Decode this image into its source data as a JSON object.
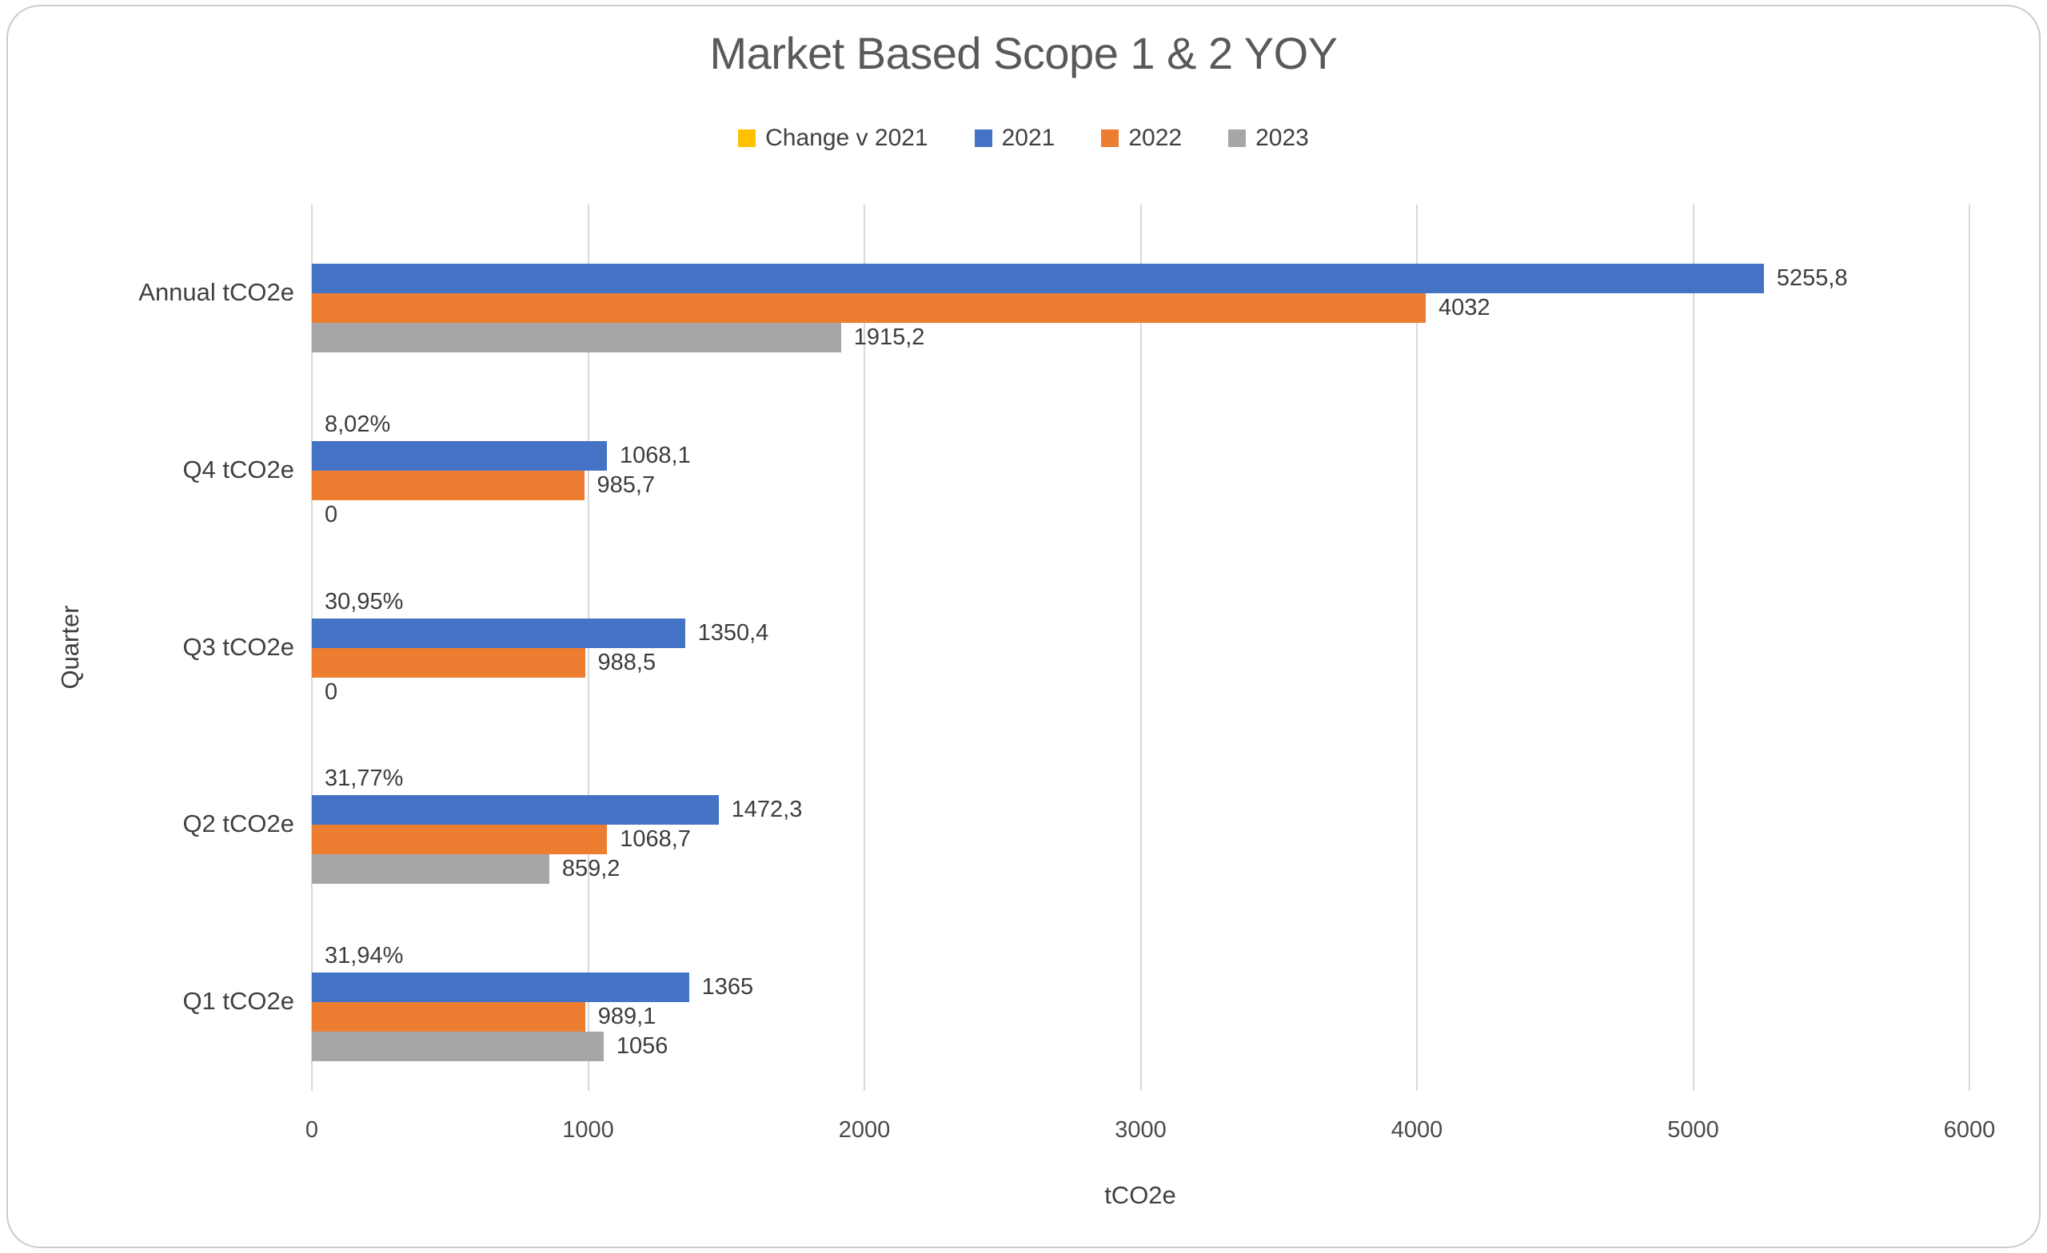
{
  "chart_data": {
    "type": "bar",
    "orientation": "horizontal",
    "title": "Market Based Scope 1 & 2 YOY",
    "xlabel": "tCO2e",
    "ylabel": "Quarter",
    "xlim": [
      0,
      6000
    ],
    "xticks": [
      0,
      1000,
      2000,
      3000,
      4000,
      5000,
      6000
    ],
    "xtick_labels": [
      "0",
      "1000",
      "2000",
      "3000",
      "4000",
      "5000",
      "6000"
    ],
    "grid": "vertical-gridlines-on",
    "legend_position": "top",
    "categories": [
      "Annual tCO2e",
      "Q4 tCO2e",
      "Q3 tCO2e",
      "Q2 tCO2e",
      "Q1 tCO2e"
    ],
    "series": [
      {
        "name": "Change v 2021",
        "color": "#FFC000",
        "role": "percent-change-labels",
        "values": [
          null,
          0.0802,
          0.3095,
          0.3177,
          0.3194
        ],
        "labels": [
          "",
          "8,02%",
          "30,95%",
          "31,77%",
          "31,94%"
        ]
      },
      {
        "name": "2021",
        "color": "#4472C4",
        "values": [
          5255.8,
          1068.1,
          1350.4,
          1472.3,
          1365
        ],
        "labels": [
          "5255,8",
          "1068,1",
          "1350,4",
          "1472,3",
          "1365"
        ]
      },
      {
        "name": "2022",
        "color": "#ED7D31",
        "values": [
          4032,
          985.7,
          988.5,
          1068.7,
          989.1
        ],
        "labels": [
          "4032",
          "985,7",
          "988,5",
          "1068,7",
          "989,1"
        ]
      },
      {
        "name": "2023",
        "color": "#A6A6A6",
        "values": [
          1915.2,
          0,
          0,
          859.2,
          1056
        ],
        "labels": [
          "1915,2",
          "0",
          "0",
          "859,2",
          "1056"
        ]
      }
    ],
    "style_colors": {
      "gridline": "#D9D9D9",
      "card_border": "#CBCBCB",
      "title_text": "#595959",
      "body_text": "#404040"
    }
  }
}
